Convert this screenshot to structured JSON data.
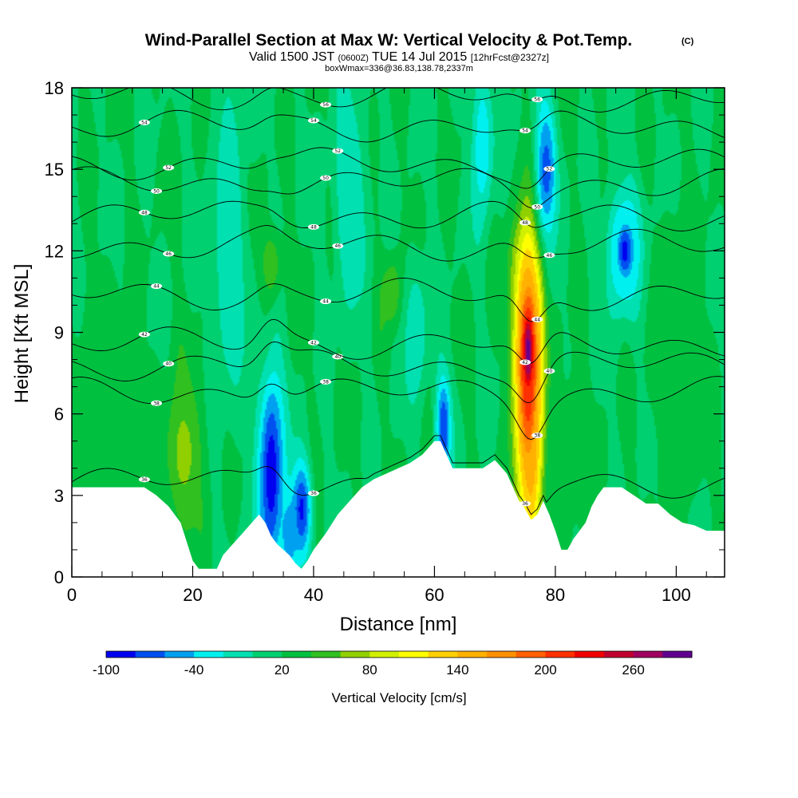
{
  "header": {
    "title": "Wind-Parallel Section at Max W: Vertical Velocity & Pot.Temp.",
    "copyright": "(C)",
    "valid_prefix": "Valid 1500 JST",
    "valid_utc": "(0600Z)",
    "valid_date": "TUE 14 Jul 2015",
    "forecast": "[12hrFcst@2327z]",
    "boxwmax": "boxWmax=336@36.83,138.78,2337m"
  },
  "chart_data": {
    "type": "heatmap",
    "xlabel": "Distance [nm]",
    "ylabel": "Height [Kft MSL]",
    "xlim": [
      0,
      108
    ],
    "ylim": [
      0,
      18
    ],
    "x_ticks": [
      "0",
      "20",
      "40",
      "60",
      "80",
      "100"
    ],
    "y_ticks": [
      "0",
      "3",
      "6",
      "9",
      "12",
      "15",
      "18"
    ],
    "grid": false,
    "background_value_cm_s": 20,
    "colorbar": {
      "label": "Vertical Velocity [cm/s]",
      "tick_labels": [
        "-100",
        "-40",
        "20",
        "80",
        "140",
        "200",
        "260"
      ],
      "bins": [
        -100,
        -80,
        -60,
        -40,
        -20,
        0,
        20,
        40,
        60,
        80,
        100,
        120,
        140,
        160,
        180,
        200,
        220,
        240,
        260,
        280,
        300
      ],
      "colors": [
        "#0000f0",
        "#0050f0",
        "#00a0f0",
        "#00f0f0",
        "#00e0b0",
        "#00d070",
        "#00c040",
        "#30c020",
        "#90d000",
        "#d0f000",
        "#ffff00",
        "#ffd000",
        "#ffb000",
        "#ff9000",
        "#ff6000",
        "#ff3000",
        "#f00000",
        "#c00030",
        "#a00060",
        "#600090"
      ]
    },
    "terrain_kft": [
      [
        0,
        3.3
      ],
      [
        5,
        3.3
      ],
      [
        12,
        3.3
      ],
      [
        14,
        3
      ],
      [
        16,
        2.6
      ],
      [
        18,
        2
      ],
      [
        19,
        1.3
      ],
      [
        20,
        0.6
      ],
      [
        21,
        0.3
      ],
      [
        24,
        0.3
      ],
      [
        25,
        0.8
      ],
      [
        27,
        1.3
      ],
      [
        29,
        1.8
      ],
      [
        31,
        2.3
      ],
      [
        32,
        2
      ],
      [
        33,
        1.5
      ],
      [
        34,
        1.2
      ],
      [
        35,
        1
      ],
      [
        36,
        0.8
      ],
      [
        37,
        0.5
      ],
      [
        38,
        0.3
      ],
      [
        39,
        0.6
      ],
      [
        40,
        1
      ],
      [
        42,
        1.6
      ],
      [
        44,
        2.3
      ],
      [
        46,
        2.8
      ],
      [
        48,
        3.3
      ],
      [
        50,
        3.6
      ],
      [
        52,
        3.8
      ],
      [
        54,
        4
      ],
      [
        56,
        4.2
      ],
      [
        58,
        4.5
      ],
      [
        60,
        5
      ],
      [
        61,
        5
      ],
      [
        62,
        4.5
      ],
      [
        63,
        4
      ],
      [
        66,
        4
      ],
      [
        68,
        4
      ],
      [
        70,
        4.3
      ],
      [
        72,
        3.8
      ],
      [
        73,
        3.3
      ],
      [
        74,
        2.8
      ],
      [
        75,
        2.5
      ],
      [
        76,
        2.1
      ],
      [
        77,
        2.3
      ],
      [
        78,
        2.8
      ],
      [
        79,
        2.3
      ],
      [
        80,
        1.7
      ],
      [
        81,
        1
      ],
      [
        82,
        1
      ],
      [
        83,
        1.4
      ],
      [
        85,
        2
      ],
      [
        86,
        2.6
      ],
      [
        87,
        3
      ],
      [
        88,
        3.3
      ],
      [
        89,
        3.3
      ],
      [
        90,
        3.3
      ],
      [
        91,
        3.3
      ],
      [
        93,
        3
      ],
      [
        95,
        2.7
      ],
      [
        97,
        2.7
      ],
      [
        99,
        2.3
      ],
      [
        101,
        2
      ],
      [
        103,
        1.9
      ],
      [
        105,
        1.7
      ],
      [
        108,
        1.7
      ]
    ],
    "velocity_features": [
      {
        "x": 18.5,
        "z": 4.5,
        "dx": 1.6,
        "dz": 1.4,
        "w": 75
      },
      {
        "x": 18.5,
        "z": 4.5,
        "dx": 2.5,
        "dz": 2.5,
        "w": 50
      },
      {
        "x": 33,
        "z": 3.8,
        "dx": 1.5,
        "dz": 2.8,
        "w": -95
      },
      {
        "x": 38,
        "z": 2.5,
        "dx": 1.2,
        "dz": 1.3,
        "w": -85
      },
      {
        "x": 36,
        "z": 1.5,
        "dx": 1.0,
        "dz": 1.0,
        "w": -60
      },
      {
        "x": 33,
        "z": 11.5,
        "dx": 1.3,
        "dz": 1.0,
        "w": 55
      },
      {
        "x": 53,
        "z": 10.5,
        "dx": 1.2,
        "dz": 0.9,
        "w": 60
      },
      {
        "x": 61.5,
        "z": 5.5,
        "dx": 0.9,
        "dz": 1.4,
        "w": -80
      },
      {
        "x": 57,
        "z": 9,
        "dx": 1.5,
        "dz": 2.0,
        "w": -15
      },
      {
        "x": 75.5,
        "z": 8.3,
        "dx": 1.0,
        "dz": 1.7,
        "w": 290
      },
      {
        "x": 75.5,
        "z": 7,
        "dx": 1.3,
        "dz": 3.0,
        "w": 210
      },
      {
        "x": 75.5,
        "z": 9.5,
        "dx": 1.6,
        "dz": 2.5,
        "w": 150
      },
      {
        "x": 76,
        "z": 4.5,
        "dx": 1.2,
        "dz": 2.5,
        "w": 150
      },
      {
        "x": 75,
        "z": 11.5,
        "dx": 1.4,
        "dz": 0.8,
        "w": 90
      },
      {
        "x": 78.5,
        "z": 15,
        "dx": 1.3,
        "dz": 1.8,
        "w": -70
      },
      {
        "x": 91.5,
        "z": 12,
        "dx": 1.2,
        "dz": 0.9,
        "w": -90
      },
      {
        "x": 91.5,
        "z": 12,
        "dx": 2.2,
        "dz": 1.8,
        "w": -40
      },
      {
        "x": 46,
        "z": 14,
        "dx": 2.0,
        "dz": 3.0,
        "w": -20
      },
      {
        "x": 26,
        "z": 12,
        "dx": 2.0,
        "dz": 4.0,
        "w": -20
      },
      {
        "x": 100,
        "z": 8,
        "dx": 3.0,
        "dz": 4.0,
        "w": 35
      },
      {
        "x": 5,
        "z": 6,
        "dx": 4.0,
        "dz": 3.0,
        "w": 40
      },
      {
        "x": 68,
        "z": 16,
        "dx": 1.2,
        "dz": 2.0,
        "w": -40
      },
      {
        "x": 83,
        "z": 5,
        "dx": 2.0,
        "dz": 2.0,
        "w": 35
      }
    ],
    "theta_contours": [
      {
        "label": "36",
        "z": 3.5
      },
      {
        "label": "38",
        "z": 6.8
      },
      {
        "label": "40",
        "z": 7.8
      },
      {
        "label": "42",
        "z": 8.6
      },
      {
        "label": "44",
        "z": 10.4
      },
      {
        "label": "46",
        "z": 12.2
      },
      {
        "label": "48",
        "z": 13.3
      },
      {
        "label": "50",
        "z": 14.5
      },
      {
        "label": "52",
        "z": 15.2
      },
      {
        "label": "54",
        "z": 16.6
      },
      {
        "label": "56",
        "z": 17.7
      }
    ]
  }
}
